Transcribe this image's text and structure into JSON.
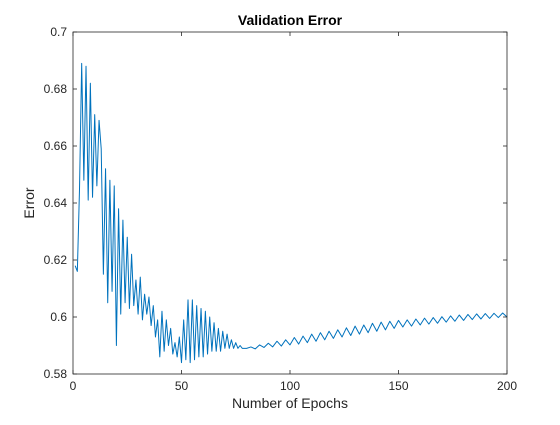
{
  "chart_data": {
    "type": "line",
    "title": "Validation Error",
    "xlabel": "Number of Epochs",
    "ylabel": "Error",
    "xlim": [
      0,
      200
    ],
    "ylim": [
      0.58,
      0.7
    ],
    "xticks": [
      0,
      50,
      100,
      150,
      200
    ],
    "yticks": [
      0.58,
      0.6,
      0.62,
      0.64,
      0.66,
      0.68,
      0.7
    ],
    "xtick_labels": [
      "0",
      "50",
      "100",
      "150",
      "200"
    ],
    "ytick_labels": [
      "0.58",
      "0.6",
      "0.62",
      "0.64",
      "0.66",
      "0.68",
      "0.7"
    ],
    "grid": false,
    "line_color": "#0072BD",
    "series": [
      {
        "x": [
          1,
          2,
          3,
          4,
          5,
          6,
          7,
          8,
          9,
          10,
          11,
          12,
          13,
          14,
          15,
          16,
          17,
          18,
          19,
          20,
          21,
          22,
          23,
          24,
          25,
          26,
          27,
          28,
          29,
          30,
          31,
          32,
          33,
          34,
          35,
          36,
          37,
          38,
          39,
          40,
          41,
          42,
          43,
          44,
          45,
          46,
          47,
          48,
          49,
          50,
          51,
          52,
          53,
          54,
          55,
          56,
          57,
          58,
          59,
          60,
          61,
          62,
          63,
          64,
          65,
          66,
          67,
          68,
          69,
          70,
          71,
          72,
          73,
          74,
          75,
          76,
          77,
          78,
          79,
          80,
          82,
          84,
          86,
          88,
          90,
          92,
          94,
          96,
          98,
          100,
          102,
          104,
          106,
          108,
          110,
          112,
          114,
          116,
          118,
          120,
          122,
          124,
          126,
          128,
          130,
          132,
          134,
          136,
          138,
          140,
          142,
          144,
          146,
          148,
          150,
          152,
          154,
          156,
          158,
          160,
          162,
          164,
          166,
          168,
          170,
          172,
          174,
          176,
          178,
          180,
          182,
          184,
          186,
          188,
          190,
          192,
          194,
          196,
          198,
          200
        ],
        "values": [
          0.618,
          0.616,
          0.645,
          0.689,
          0.648,
          0.688,
          0.641,
          0.682,
          0.642,
          0.671,
          0.646,
          0.669,
          0.659,
          0.615,
          0.652,
          0.605,
          0.648,
          0.609,
          0.646,
          0.59,
          0.638,
          0.601,
          0.634,
          0.605,
          0.628,
          0.603,
          0.622,
          0.604,
          0.613,
          0.601,
          0.614,
          0.599,
          0.608,
          0.601,
          0.607,
          0.597,
          0.604,
          0.593,
          0.599,
          0.586,
          0.602,
          0.588,
          0.599,
          0.59,
          0.596,
          0.587,
          0.591,
          0.586,
          0.593,
          0.584,
          0.599,
          0.585,
          0.606,
          0.584,
          0.606,
          0.585,
          0.604,
          0.586,
          0.603,
          0.586,
          0.602,
          0.587,
          0.6,
          0.588,
          0.598,
          0.588,
          0.596,
          0.588,
          0.595,
          0.589,
          0.594,
          0.589,
          0.592,
          0.589,
          0.591,
          0.589,
          0.59,
          0.589,
          0.589,
          0.589,
          0.5895,
          0.5888,
          0.5902,
          0.5893,
          0.5908,
          0.5895,
          0.5915,
          0.5898,
          0.592,
          0.5902,
          0.5928,
          0.5905,
          0.5933,
          0.591,
          0.594,
          0.5915,
          0.5945,
          0.592,
          0.595,
          0.5925,
          0.5955,
          0.593,
          0.5962,
          0.5935,
          0.5968,
          0.594,
          0.5972,
          0.5945,
          0.5978,
          0.595,
          0.5982,
          0.5955,
          0.5985,
          0.596,
          0.5988,
          0.5965,
          0.599,
          0.5968,
          0.5993,
          0.5972,
          0.5996,
          0.5975,
          0.5998,
          0.5978,
          0.6001,
          0.5982,
          0.6004,
          0.5985,
          0.6007,
          0.5988,
          0.6009,
          0.5991,
          0.6011,
          0.5993,
          0.6012,
          0.5995,
          0.6013,
          0.5998,
          0.6014,
          0.6
        ]
      }
    ]
  }
}
